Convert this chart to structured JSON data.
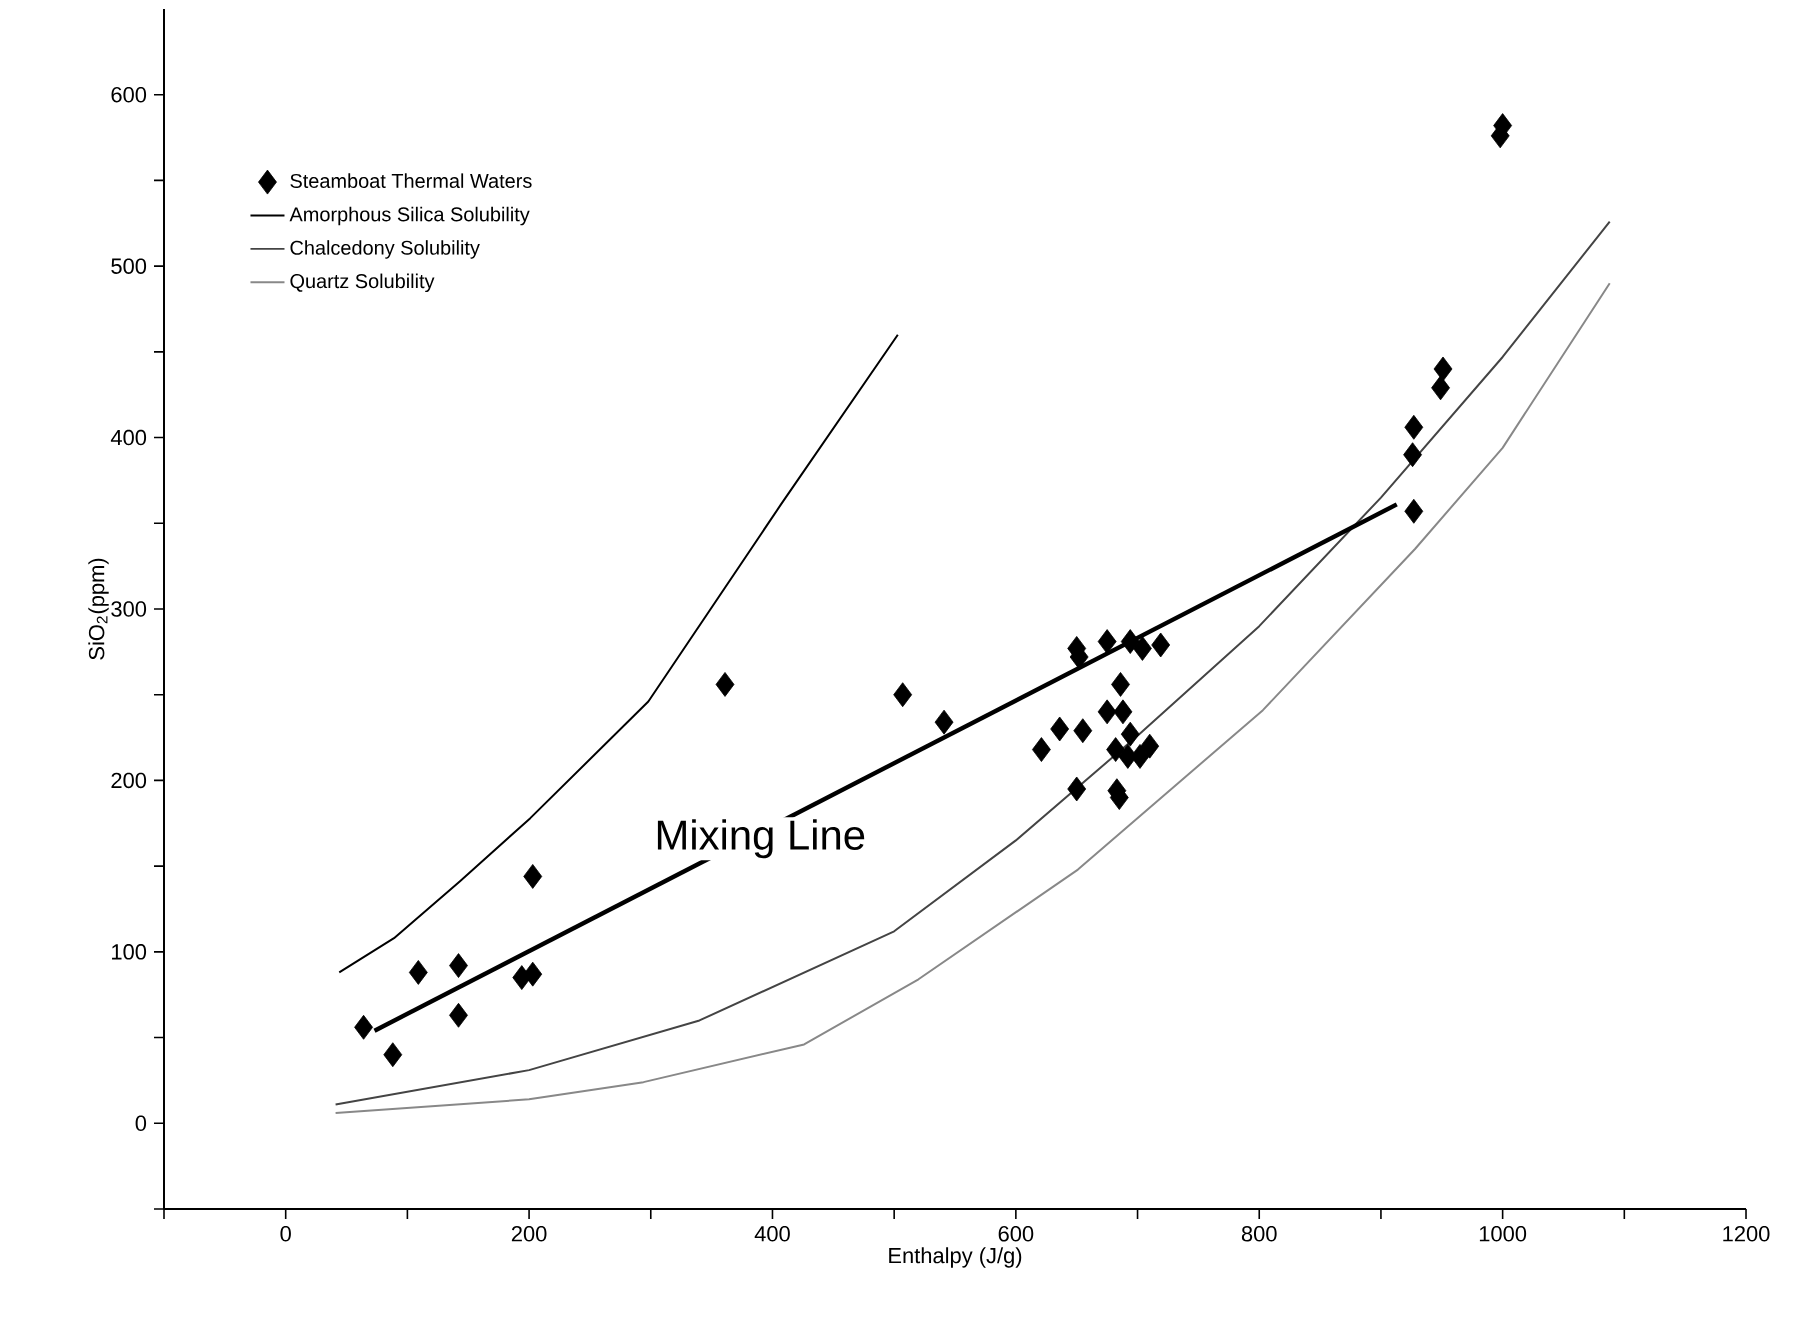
{
  "chart_data": {
    "type": "scatter",
    "xlabel": "Enthalpy (J/g)",
    "ylabel": "SiO$_{2}$(ppm)",
    "xlim": [
      -100,
      1200
    ],
    "ylim": [
      -50,
      650
    ],
    "xticks": [
      {
        "value": -100,
        "label": null
      },
      0,
      {
        "value": 100,
        "label": null
      },
      200,
      {
        "value": 300,
        "label": null
      },
      400,
      {
        "value": 500,
        "label": null
      },
      600,
      {
        "value": 700,
        "label": null
      },
      800,
      {
        "value": 900,
        "label": null
      },
      1000,
      {
        "value": 1100,
        "label": null
      },
      1200
    ],
    "yticks": [
      {
        "value": -50,
        "label": null
      },
      0,
      {
        "value": 50,
        "label": null
      },
      100,
      {
        "value": 150,
        "label": null
      },
      200,
      {
        "value": 250,
        "label": null
      },
      300,
      {
        "value": 350,
        "label": null
      },
      400,
      {
        "value": 450,
        "label": null
      },
      500,
      {
        "value": 550,
        "label": null
      },
      600
    ],
    "grid": false,
    "legend": "top left",
    "series": [
      {
        "name": "Steamboat Thermal Waters",
        "marker": "diamond",
        "color": "#000000",
        "x": [
          64,
          88,
          109,
          142,
          142,
          194,
          203,
          203,
          361,
          507,
          541,
          621,
          636,
          650,
          650,
          652,
          655,
          675,
          675,
          683,
          685,
          686,
          688,
          692,
          682,
          694,
          702,
          710,
          694,
          704,
          719,
          927,
          926,
          927,
          949,
          951,
          998,
          1000
        ],
        "values": [
          56,
          40,
          88,
          92,
          63,
          85,
          87,
          144,
          256,
          250,
          234,
          218,
          230,
          195,
          277,
          272,
          229,
          240,
          281,
          194,
          190,
          256,
          240,
          214,
          218,
          227,
          214,
          220,
          281,
          277,
          279,
          357,
          390,
          406,
          429,
          440,
          576,
          582
        ]
      },
      {
        "name": "Amorphous Silica Solubility",
        "type": "line",
        "marker": "none",
        "color": "#000000",
        "x": [
          44,
          89,
          143,
          201,
          298,
          407,
          503
        ],
        "values": [
          88,
          108,
          141,
          178,
          246,
          361,
          460
        ]
      },
      {
        "name": "Chalcedony Solubility",
        "type": "line",
        "marker": "none",
        "color": "#444444",
        "x": [
          41,
          200,
          340,
          500,
          600,
          700,
          800,
          900,
          1000,
          1088
        ],
        "values": [
          11,
          31,
          60,
          112,
          165,
          226,
          290,
          365,
          447,
          526
        ]
      },
      {
        "name": "Quartz Solubility",
        "type": "line",
        "marker": "none",
        "color": "#888888",
        "x": [
          41,
          200,
          294,
          426,
          520,
          651,
          803,
          928,
          1000,
          1088
        ],
        "values": [
          6,
          14,
          24,
          46,
          84,
          148,
          241,
          335,
          394,
          490
        ]
      },
      {
        "type": "line",
        "marker": "none",
        "color": "#000000",
        "x": [
          73,
          913
        ],
        "values": [
          54,
          361
        ]
      }
    ],
    "annotations": [
      {
        "text": "Mixing Line",
        "x": 390,
        "y": 166
      }
    ]
  }
}
